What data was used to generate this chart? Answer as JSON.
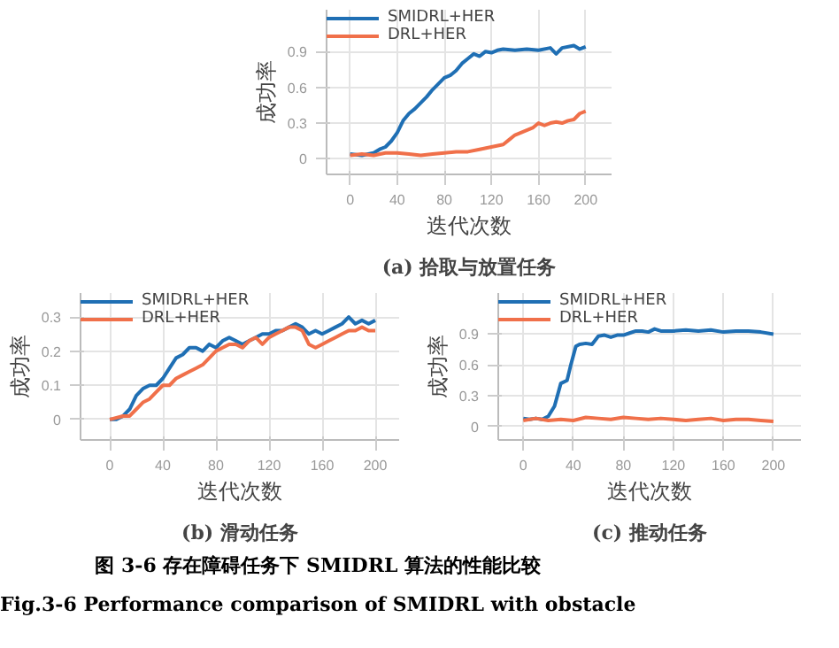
{
  "chart_data": [
    {
      "type": "line",
      "title": "(a) 拾取与放置任务",
      "xlabel": "迭代次数",
      "ylabel": "成功率",
      "xlim": [
        -20,
        222
      ],
      "ylim": [
        -0.13,
        1.25
      ],
      "xticks": [
        0,
        40,
        80,
        120,
        160,
        200
      ],
      "yticks": [
        0,
        0.3,
        0.6,
        0.9
      ],
      "grid": true,
      "legend": "top left",
      "series": [
        {
          "name": "SMIDRL+HER",
          "color": "#1f6fb4",
          "x": [
            0,
            10,
            20,
            25,
            30,
            35,
            40,
            45,
            50,
            55,
            60,
            65,
            70,
            75,
            80,
            85,
            90,
            95,
            100,
            105,
            110,
            115,
            120,
            125,
            130,
            140,
            150,
            160,
            170,
            175,
            180,
            190,
            195,
            200
          ],
          "values": [
            0.04,
            0.03,
            0.05,
            0.08,
            0.1,
            0.15,
            0.22,
            0.32,
            0.38,
            0.42,
            0.47,
            0.52,
            0.58,
            0.63,
            0.68,
            0.7,
            0.74,
            0.8,
            0.84,
            0.88,
            0.86,
            0.9,
            0.89,
            0.91,
            0.92,
            0.91,
            0.92,
            0.91,
            0.93,
            0.88,
            0.93,
            0.95,
            0.92,
            0.94
          ]
        },
        {
          "name": "DRL+HER",
          "color": "#f0704a",
          "x": [
            0,
            10,
            20,
            30,
            40,
            50,
            60,
            70,
            80,
            90,
            100,
            110,
            120,
            130,
            135,
            140,
            145,
            150,
            155,
            160,
            165,
            170,
            175,
            180,
            185,
            190,
            195,
            200
          ],
          "values": [
            0.03,
            0.04,
            0.03,
            0.05,
            0.05,
            0.04,
            0.03,
            0.04,
            0.05,
            0.06,
            0.06,
            0.08,
            0.1,
            0.12,
            0.16,
            0.2,
            0.22,
            0.24,
            0.26,
            0.3,
            0.28,
            0.3,
            0.31,
            0.3,
            0.32,
            0.33,
            0.38,
            0.4
          ]
        }
      ]
    },
    {
      "type": "line",
      "title": "(b) 滑动任务",
      "xlabel": "迭代次数",
      "ylabel": "成功率",
      "xlim": [
        -22,
        218
      ],
      "ylim": [
        -0.06,
        0.37
      ],
      "xticks": [
        0,
        40,
        80,
        120,
        160,
        200
      ],
      "yticks": [
        0,
        0.1,
        0.2,
        0.3
      ],
      "grid": true,
      "legend": "top left",
      "series": [
        {
          "name": "SMIDRL+HER",
          "color": "#1f6fb4",
          "x": [
            0,
            5,
            10,
            15,
            20,
            25,
            30,
            35,
            40,
            45,
            50,
            55,
            60,
            65,
            70,
            75,
            80,
            85,
            90,
            95,
            100,
            105,
            110,
            115,
            120,
            125,
            130,
            135,
            140,
            145,
            150,
            155,
            160,
            165,
            170,
            175,
            180,
            185,
            190,
            195,
            200
          ],
          "values": [
            0,
            0,
            0.01,
            0.03,
            0.07,
            0.09,
            0.1,
            0.1,
            0.12,
            0.15,
            0.18,
            0.19,
            0.21,
            0.21,
            0.2,
            0.22,
            0.21,
            0.23,
            0.24,
            0.23,
            0.22,
            0.23,
            0.24,
            0.25,
            0.25,
            0.26,
            0.26,
            0.27,
            0.28,
            0.27,
            0.25,
            0.26,
            0.25,
            0.26,
            0.27,
            0.28,
            0.3,
            0.28,
            0.29,
            0.28,
            0.29
          ]
        },
        {
          "name": "DRL+HER",
          "color": "#f0704a",
          "x": [
            0,
            10,
            15,
            20,
            25,
            30,
            35,
            40,
            45,
            50,
            55,
            60,
            65,
            70,
            75,
            80,
            85,
            90,
            95,
            100,
            105,
            110,
            115,
            120,
            125,
            130,
            135,
            140,
            145,
            150,
            155,
            160,
            165,
            170,
            175,
            180,
            185,
            190,
            195,
            200
          ],
          "values": [
            0,
            0.01,
            0.01,
            0.03,
            0.05,
            0.06,
            0.08,
            0.1,
            0.1,
            0.12,
            0.13,
            0.14,
            0.15,
            0.16,
            0.18,
            0.2,
            0.21,
            0.22,
            0.22,
            0.21,
            0.23,
            0.24,
            0.22,
            0.24,
            0.25,
            0.26,
            0.27,
            0.27,
            0.26,
            0.22,
            0.21,
            0.22,
            0.23,
            0.24,
            0.25,
            0.26,
            0.26,
            0.27,
            0.26,
            0.26
          ]
        }
      ]
    },
    {
      "type": "line",
      "title": "(c) 推动任务",
      "xlabel": "迭代次数",
      "ylabel": "成功率",
      "xlim": [
        -20,
        222
      ],
      "ylim": [
        -0.13,
        1.3
      ],
      "xticks": [
        0,
        40,
        80,
        120,
        160,
        200
      ],
      "yticks": [
        0,
        0.3,
        0.6,
        0.9
      ],
      "grid": true,
      "legend": "top left",
      "annotations": [
        "图 3-6 存在障碍任务下 SMIDRL 算法的性能比较",
        "Fig.3-6 Performance comparison of SMIDRL with obstacle"
      ],
      "series": [
        {
          "name": "SMIDRL+HER",
          "color": "#1f6fb4",
          "x": [
            0,
            5,
            10,
            15,
            20,
            25,
            30,
            35,
            38,
            42,
            45,
            50,
            55,
            60,
            65,
            70,
            75,
            80,
            85,
            90,
            95,
            100,
            105,
            110,
            120,
            130,
            140,
            150,
            160,
            170,
            180,
            190,
            200
          ],
          "values": [
            0.08,
            0.07,
            0.08,
            0.07,
            0.1,
            0.2,
            0.42,
            0.45,
            0.6,
            0.78,
            0.8,
            0.81,
            0.8,
            0.88,
            0.89,
            0.87,
            0.89,
            0.89,
            0.91,
            0.93,
            0.93,
            0.92,
            0.95,
            0.93,
            0.93,
            0.94,
            0.93,
            0.94,
            0.92,
            0.93,
            0.93,
            0.92,
            0.9
          ]
        },
        {
          "name": "DRL+HER",
          "color": "#f0704a",
          "x": [
            0,
            10,
            20,
            30,
            40,
            50,
            60,
            70,
            80,
            90,
            100,
            110,
            120,
            130,
            140,
            150,
            160,
            170,
            180,
            190,
            200
          ],
          "values": [
            0.06,
            0.08,
            0.06,
            0.07,
            0.06,
            0.09,
            0.08,
            0.07,
            0.09,
            0.08,
            0.07,
            0.08,
            0.07,
            0.06,
            0.07,
            0.08,
            0.06,
            0.07,
            0.07,
            0.06,
            0.05
          ]
        }
      ]
    }
  ]
}
